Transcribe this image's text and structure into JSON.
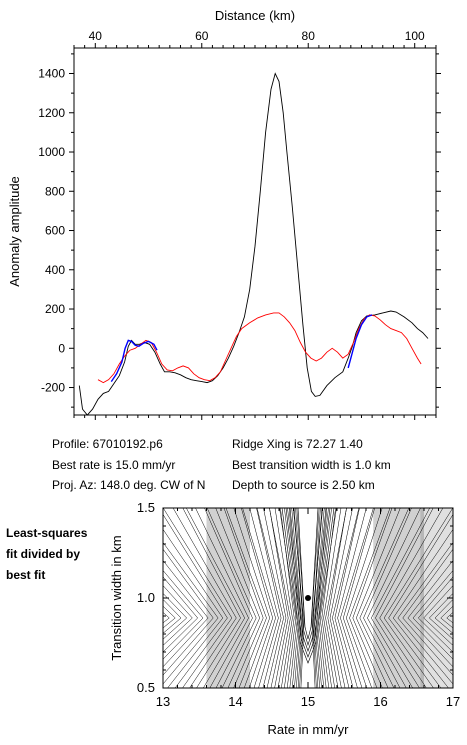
{
  "chart_data": [
    {
      "type": "line",
      "xlabel": "Distance (km)",
      "ylabel": "Anomaly amplitude",
      "xlim": [
        36,
        104
      ],
      "ylim": [
        -340,
        1530
      ],
      "x_ticks": [
        40,
        60,
        80,
        100
      ],
      "y_ticks": [
        -200,
        0,
        200,
        400,
        600,
        800,
        1000,
        1200,
        1400
      ],
      "series": [
        {
          "color": "#000000",
          "points": [
            [
              37,
              -190
            ],
            [
              37.6,
              -310
            ],
            [
              38.5,
              -340
            ],
            [
              39.5,
              -310
            ],
            [
              40.5,
              -260
            ],
            [
              41.5,
              -230
            ],
            [
              42.5,
              -220
            ],
            [
              43.5,
              -180
            ],
            [
              44.5,
              -140
            ],
            [
              45.5,
              -70
            ],
            [
              46.2,
              10
            ],
            [
              46.8,
              40
            ],
            [
              47.5,
              20
            ],
            [
              48.3,
              20
            ],
            [
              49.2,
              30
            ],
            [
              50.2,
              20
            ],
            [
              51.2,
              -20
            ],
            [
              52.2,
              -80
            ],
            [
              53,
              -120
            ],
            [
              54,
              -120
            ],
            [
              55,
              -125
            ],
            [
              56,
              -135
            ],
            [
              57,
              -150
            ],
            [
              58,
              -160
            ],
            [
              59,
              -165
            ],
            [
              60,
              -170
            ],
            [
              61,
              -175
            ],
            [
              62,
              -165
            ],
            [
              63,
              -140
            ],
            [
              64,
              -100
            ],
            [
              65,
              -50
            ],
            [
              66,
              10
            ],
            [
              67,
              80
            ],
            [
              68,
              160
            ],
            [
              69,
              300
            ],
            [
              70,
              520
            ],
            [
              71,
              800
            ],
            [
              72,
              1100
            ],
            [
              73,
              1320
            ],
            [
              73.8,
              1400
            ],
            [
              74.5,
              1360
            ],
            [
              75.3,
              1200
            ],
            [
              76,
              1000
            ],
            [
              77,
              720
            ],
            [
              78,
              420
            ],
            [
              79,
              120
            ],
            [
              79.8,
              -100
            ],
            [
              80.6,
              -220
            ],
            [
              81.3,
              -245
            ],
            [
              82.2,
              -240
            ],
            [
              83.5,
              -190
            ],
            [
              85,
              -150
            ],
            [
              86.5,
              -120
            ],
            [
              87.5,
              -50
            ],
            [
              88.3,
              10
            ],
            [
              89,
              80
            ],
            [
              90,
              140
            ],
            [
              91,
              165
            ],
            [
              92.5,
              170
            ],
            [
              94,
              180
            ],
            [
              95.5,
              190
            ],
            [
              96.5,
              185
            ],
            [
              98,
              160
            ],
            [
              99.5,
              130
            ],
            [
              100.5,
              100
            ],
            [
              101.5,
              80
            ],
            [
              102.5,
              50
            ]
          ]
        },
        {
          "color": "#ff0000",
          "points": [
            [
              40.5,
              -160
            ],
            [
              41.5,
              -175
            ],
            [
              42.5,
              -160
            ],
            [
              43.5,
              -130
            ],
            [
              44.5,
              -80
            ],
            [
              45.5,
              -40
            ],
            [
              46.5,
              -10
            ],
            [
              47.5,
              0
            ],
            [
              48.5,
              20
            ],
            [
              49.5,
              40
            ],
            [
              50.5,
              30
            ],
            [
              51.5,
              -20
            ],
            [
              52.5,
              -80
            ],
            [
              53.5,
              -110
            ],
            [
              54.5,
              -115
            ],
            [
              55.5,
              -100
            ],
            [
              56.5,
              -90
            ],
            [
              57.5,
              -100
            ],
            [
              58.5,
              -130
            ],
            [
              59.5,
              -150
            ],
            [
              60.5,
              -160
            ],
            [
              61.5,
              -165
            ],
            [
              62.5,
              -150
            ],
            [
              63.5,
              -120
            ],
            [
              64.5,
              -60
            ],
            [
              65.5,
              0
            ],
            [
              66.5,
              60
            ],
            [
              67.5,
              100
            ],
            [
              69,
              130
            ],
            [
              70.5,
              155
            ],
            [
              72,
              170
            ],
            [
              73.5,
              180
            ],
            [
              74.5,
              180
            ],
            [
              75.5,
              160
            ],
            [
              76.5,
              130
            ],
            [
              77.5,
              90
            ],
            [
              78.5,
              30
            ],
            [
              79.5,
              -20
            ],
            [
              80.5,
              -50
            ],
            [
              81.5,
              -65
            ],
            [
              82.5,
              -50
            ],
            [
              83.5,
              -20
            ],
            [
              84.5,
              0
            ],
            [
              85.5,
              -20
            ],
            [
              86.5,
              -50
            ],
            [
              87.5,
              -30
            ],
            [
              88.5,
              30
            ],
            [
              89.5,
              100
            ],
            [
              90.5,
              150
            ],
            [
              91.5,
              170
            ],
            [
              92.5,
              165
            ],
            [
              93.5,
              145
            ],
            [
              94.5,
              120
            ],
            [
              95.5,
              100
            ],
            [
              96.5,
              90
            ],
            [
              97.5,
              80
            ],
            [
              98.5,
              50
            ],
            [
              99.5,
              0
            ],
            [
              100.5,
              -50
            ],
            [
              101.2,
              -80
            ]
          ]
        },
        {
          "color": "#0000ff",
          "points": [
            [
              43,
              -170
            ],
            [
              44,
              -130
            ],
            [
              45,
              -70
            ],
            [
              45.6,
              0
            ],
            [
              46.2,
              40
            ],
            [
              46.8,
              35
            ],
            [
              47.5,
              15
            ],
            [
              48.2,
              10
            ],
            [
              49,
              25
            ],
            [
              50,
              35
            ],
            [
              51,
              20
            ],
            [
              51.6,
              -10
            ]
          ]
        },
        {
          "color": "#0000ff",
          "points": [
            [
              87.5,
              -100
            ],
            [
              88.2,
              -30
            ],
            [
              89,
              50
            ],
            [
              90,
              120
            ],
            [
              91,
              160
            ],
            [
              92,
              170
            ]
          ]
        }
      ]
    },
    {
      "type": "contour",
      "xlabel": "Rate in mm/yr",
      "ylabel": "Transition width in km",
      "xlim": [
        13,
        17
      ],
      "ylim": [
        0.5,
        1.5
      ],
      "x_ticks": [
        13,
        14,
        15,
        16,
        17
      ],
      "y_ticks": [
        0.5,
        1.0,
        1.5
      ],
      "best_fit": {
        "x": 15.0,
        "y": 1.0
      }
    }
  ],
  "info": {
    "profile": "Profile: 67010192.p6",
    "best_rate": "Best rate is 15.0 mm/yr",
    "proj_az": "Proj. Az: 148.0 deg. CW of N",
    "ridge_xing": "Ridge Xing is 72.27  1.40",
    "best_transition": "Best transition width is 1.0 km",
    "depth": "Depth to source is    2.50 km"
  },
  "side_label": [
    "Least-squares",
    "fit divided by",
    "best fit"
  ]
}
